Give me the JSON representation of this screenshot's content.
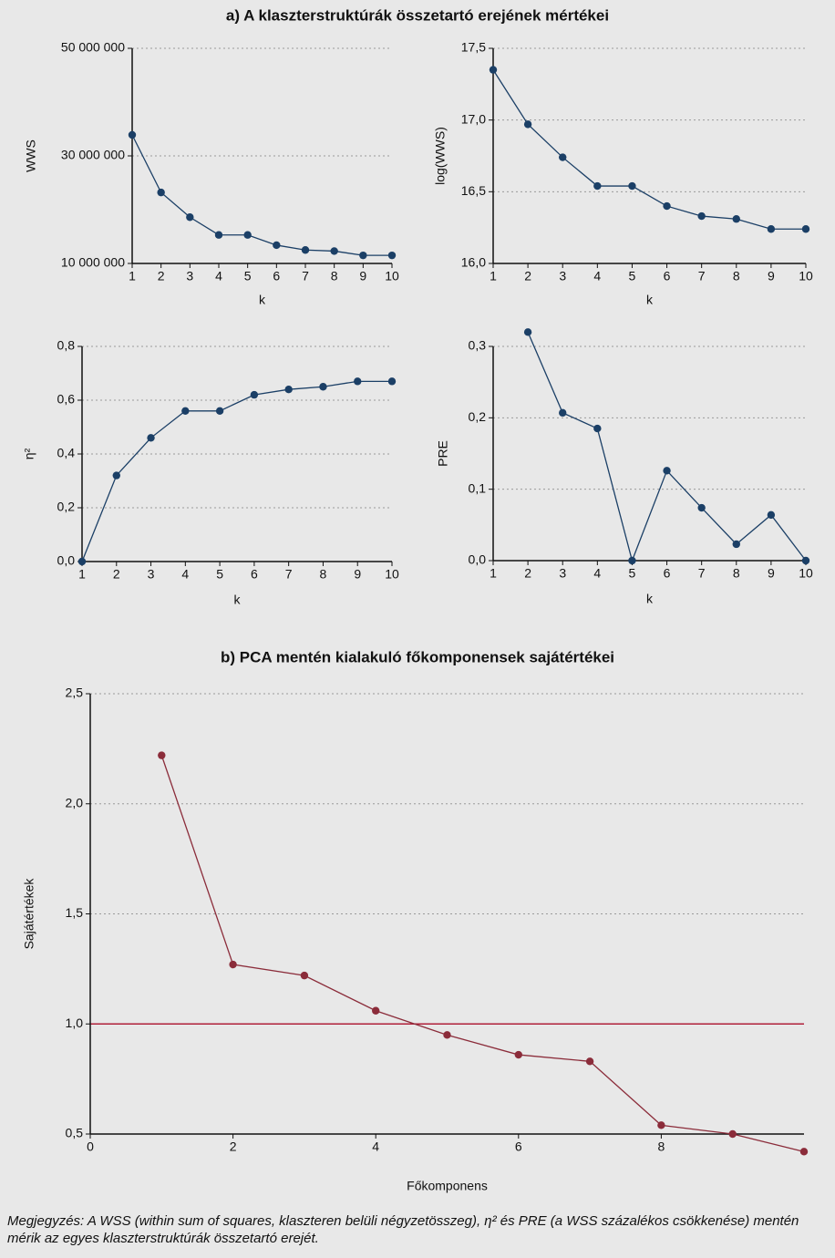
{
  "section_titles": [
    "a) A klaszterstruktúrák összetartó erejének mértékei",
    "b) PCA mentén kialakuló főkomponensek sajátértékei"
  ],
  "note": "Megjegyzés: A WSS (within sum of squares, klaszteren belüli négyzetösszeg), η² és PRE (a WSS százalékos csökkenése) mentén mérik az egyes klaszterstruktúrák összetartó erejét.",
  "chart_data": [
    {
      "type": "line",
      "ylabel": "WWS",
      "xlabel": "k",
      "color": "#1b3f66",
      "x": [
        1,
        2,
        3,
        4,
        5,
        6,
        7,
        8,
        9,
        10
      ],
      "xlim": [
        1,
        10
      ],
      "xticks": [
        1,
        2,
        3,
        4,
        5,
        6,
        7,
        8,
        9,
        10
      ],
      "values": [
        33900000,
        23200000,
        18600000,
        15300000,
        15300000,
        13400000,
        12500000,
        12300000,
        11500000,
        11500000
      ],
      "ylim": [
        10000000,
        50000000
      ],
      "yticks": [
        {
          "value": 10000000,
          "label": "10 000 000"
        },
        {
          "value": 30000000,
          "label": "30 000 000"
        },
        {
          "value": 50000000,
          "label": "50 000 000"
        }
      ],
      "grid": true
    },
    {
      "type": "line",
      "ylabel": "log(WWS)",
      "xlabel": "k",
      "color": "#1b3f66",
      "x": [
        1,
        2,
        3,
        4,
        5,
        6,
        7,
        8,
        9,
        10
      ],
      "xlim": [
        1,
        10
      ],
      "xticks": [
        1,
        2,
        3,
        4,
        5,
        6,
        7,
        8,
        9,
        10
      ],
      "values": [
        17.35,
        16.97,
        16.74,
        16.54,
        16.54,
        16.4,
        16.33,
        16.31,
        16.24,
        16.24
      ],
      "ylim": [
        16,
        17.5
      ],
      "yticks": [
        {
          "value": 16,
          "label": "16,0"
        },
        {
          "value": 16.5,
          "label": "16,5"
        },
        {
          "value": 17,
          "label": "17,0"
        },
        {
          "value": 17.5,
          "label": "17,5"
        }
      ],
      "grid": true
    },
    {
      "type": "line",
      "ylabel": "η²",
      "xlabel": "k",
      "color": "#1b3f66",
      "x": [
        1,
        2,
        3,
        4,
        5,
        6,
        7,
        8,
        9,
        10
      ],
      "xlim": [
        1,
        10
      ],
      "xticks": [
        1,
        2,
        3,
        4,
        5,
        6,
        7,
        8,
        9,
        10
      ],
      "values": [
        0,
        0.32,
        0.46,
        0.56,
        0.56,
        0.62,
        0.64,
        0.65,
        0.67,
        0.67
      ],
      "ylim": [
        0,
        0.8
      ],
      "yticks": [
        {
          "value": 0,
          "label": "0,0"
        },
        {
          "value": 0.2,
          "label": "0,2"
        },
        {
          "value": 0.4,
          "label": "0,4"
        },
        {
          "value": 0.6,
          "label": "0,6"
        },
        {
          "value": 0.8,
          "label": "0,8"
        }
      ],
      "grid": true
    },
    {
      "type": "line",
      "ylabel": "PRE",
      "xlabel": "k",
      "color": "#1b3f66",
      "x": [
        1,
        2,
        3,
        4,
        5,
        6,
        7,
        8,
        9,
        10
      ],
      "xlim": [
        1,
        10
      ],
      "xticks": [
        1,
        2,
        3,
        4,
        5,
        6,
        7,
        8,
        9,
        10
      ],
      "values": [
        null,
        0.32,
        0.207,
        0.185,
        0,
        0.126,
        0.074,
        0.023,
        0.064,
        0
      ],
      "ylim": [
        0,
        0.3
      ],
      "yticks": [
        {
          "value": 0,
          "label": "0,0"
        },
        {
          "value": 0.1,
          "label": "0,1"
        },
        {
          "value": 0.2,
          "label": "0,2"
        },
        {
          "value": 0.3,
          "label": "0,3"
        }
      ],
      "grid": true
    },
    {
      "type": "line",
      "ylabel": "Sajátértékek",
      "xlabel": "Főkomponens",
      "color": "#8b2c3a",
      "x": [
        1,
        2,
        3,
        4,
        5,
        6,
        7,
        8,
        9,
        10
      ],
      "xlim": [
        0,
        10
      ],
      "xticks": [
        0,
        2,
        4,
        6,
        8
      ],
      "values": [
        2.22,
        1.27,
        1.22,
        1.06,
        0.95,
        0.86,
        0.83,
        0.54,
        0.5,
        0.42
      ],
      "ylim": [
        0.5,
        2.5
      ],
      "yticks": [
        {
          "value": 0.5,
          "label": "0,5"
        },
        {
          "value": 1,
          "label": "1,0"
        },
        {
          "value": 1.5,
          "label": "1,5"
        },
        {
          "value": 2,
          "label": "2,0"
        },
        {
          "value": 2.5,
          "label": "2,5"
        }
      ],
      "grid": true,
      "hline": {
        "value": 1,
        "color": "#b0203a"
      }
    }
  ]
}
